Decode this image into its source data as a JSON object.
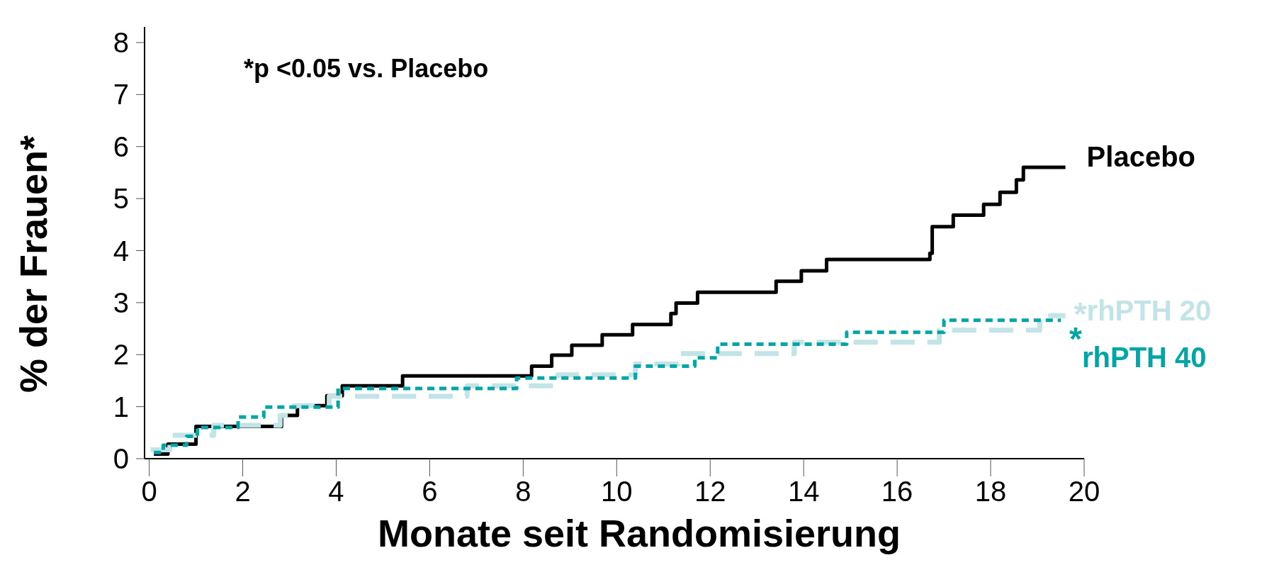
{
  "chart_data": {
    "type": "step",
    "xlabel": "Monate seit Randomisierung",
    "ylabel": "% der Frauen*",
    "xlim": [
      -0.1,
      20
    ],
    "ylim": [
      0,
      8.3
    ],
    "xticks": [
      0,
      2,
      4,
      6,
      8,
      10,
      12,
      14,
      16,
      18,
      20
    ],
    "yticks": [
      0,
      1,
      2,
      3,
      4,
      5,
      6,
      7,
      8
    ],
    "grid": false,
    "legend": "right",
    "annotations": [
      "*p <0.05 vs. Placebo",
      {
        "text": "*",
        "x": 19.6,
        "y": 2.75
      },
      {
        "text": "*",
        "x": 19.5,
        "y": 2.66
      }
    ],
    "series": [
      {
        "name": "Placebo",
        "color": "#000000",
        "line_style": "solid",
        "x": [
          0.1,
          0.4,
          1.0,
          2.83,
          3.17,
          3.8,
          4.13,
          5.42,
          8.18,
          8.61,
          9.04,
          9.69,
          10.34,
          11.16,
          11.27,
          11.73,
          13.41,
          13.95,
          14.49,
          16.7,
          16.75,
          17.2,
          17.85,
          18.2,
          18.55,
          18.7,
          19.6
        ],
        "values": [
          0.09,
          0.28,
          0.62,
          0.83,
          1.02,
          1.21,
          1.4,
          1.59,
          1.78,
          1.99,
          2.18,
          2.38,
          2.58,
          2.79,
          2.99,
          3.2,
          3.41,
          3.61,
          3.83,
          3.95,
          4.46,
          4.68,
          4.89,
          5.12,
          5.36,
          5.6,
          5.6
        ]
      },
      {
        "name": "rhPTH 20",
        "color": "#c2e4e6",
        "line_style": "dashed",
        "x": [
          0.03,
          0.44,
          1.38,
          2.8,
          3.1,
          3.85,
          6.8,
          8.74,
          10.4,
          11.32,
          13.8,
          16.9,
          19.05,
          19.6
        ],
        "values": [
          0.17,
          0.45,
          0.64,
          0.83,
          1.02,
          1.2,
          1.4,
          1.61,
          1.82,
          2.02,
          2.24,
          2.47,
          2.75,
          2.75
        ]
      },
      {
        "name": "rhPTH 40",
        "color": "#00a5a5",
        "line_style": "dotted",
        "x": [
          0.1,
          0.3,
          0.8,
          1.03,
          1.9,
          2.45,
          4.04,
          7.86,
          10.4,
          11.67,
          12.16,
          14.92,
          17.0,
          19.5
        ],
        "values": [
          0.12,
          0.26,
          0.43,
          0.6,
          0.8,
          0.99,
          1.35,
          1.55,
          1.78,
          1.94,
          2.2,
          2.43,
          2.66,
          2.66
        ]
      }
    ]
  }
}
